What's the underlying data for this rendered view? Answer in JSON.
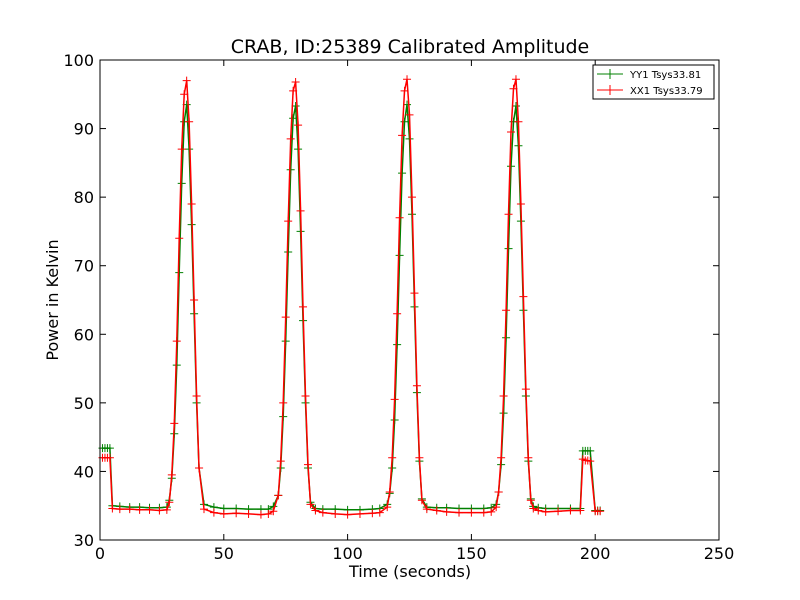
{
  "chart_data": {
    "type": "line",
    "title": "CRAB, ID:25389 Calibrated Amplitude",
    "xlabel": "Time (seconds)",
    "ylabel": "Power in Kelvin",
    "xlim": [
      0,
      250
    ],
    "ylim": [
      30,
      100
    ],
    "xticks": [
      "0",
      "50",
      "100",
      "150",
      "200",
      "250"
    ],
    "yticks": [
      "30",
      "40",
      "50",
      "60",
      "70",
      "80",
      "90",
      "100"
    ],
    "grid": false,
    "legend": "top-right",
    "series": [
      {
        "name": "YY1 Tsys33.81",
        "color": "#008000",
        "marker": "+",
        "x": [
          1,
          2,
          3,
          4,
          5,
          8,
          12,
          16,
          20,
          24,
          27,
          28,
          29,
          30,
          31,
          32,
          33,
          34,
          35,
          36,
          37,
          38,
          39,
          40,
          42,
          46,
          50,
          55,
          60,
          65,
          68,
          70,
          72,
          73,
          74,
          75,
          76,
          77,
          78,
          79,
          80,
          81,
          82,
          83,
          84,
          85,
          87,
          90,
          95,
          100,
          105,
          110,
          113,
          116,
          117,
          118,
          119,
          120,
          121,
          122,
          123,
          124,
          125,
          126,
          127,
          128,
          129,
          130,
          132,
          136,
          140,
          145,
          150,
          155,
          158,
          160,
          161,
          162,
          163,
          164,
          165,
          166,
          167,
          168,
          169,
          170,
          171,
          172,
          173,
          174,
          175,
          177,
          180,
          185,
          190,
          194,
          195,
          196,
          197,
          198,
          200,
          201,
          202
        ],
        "y": [
          43.4,
          43.4,
          43.4,
          43.4,
          35.0,
          34.9,
          34.8,
          34.8,
          34.7,
          34.7,
          34.8,
          35.8,
          39.0,
          45.5,
          55.5,
          69.0,
          82.0,
          91.0,
          93.5,
          87.0,
          76.0,
          63.0,
          50.0,
          40.5,
          35.2,
          34.8,
          34.6,
          34.6,
          34.5,
          34.5,
          34.5,
          34.9,
          36.5,
          40.5,
          48.0,
          59.0,
          72.0,
          84.0,
          91.5,
          93.3,
          87.0,
          75.0,
          62.0,
          50.0,
          40.5,
          35.5,
          34.6,
          34.5,
          34.5,
          34.4,
          34.4,
          34.5,
          34.6,
          35.2,
          36.8,
          40.5,
          47.5,
          58.5,
          71.5,
          83.5,
          91.0,
          93.5,
          88.5,
          77.5,
          64.0,
          51.5,
          41.5,
          36.0,
          34.8,
          34.7,
          34.7,
          34.6,
          34.6,
          34.6,
          34.7,
          35.2,
          37.0,
          41.0,
          48.5,
          59.5,
          72.5,
          84.5,
          91.0,
          93.3,
          87.5,
          76.5,
          63.5,
          51.0,
          41.5,
          36.0,
          34.9,
          34.7,
          34.6,
          34.6,
          34.6,
          34.6,
          43.0,
          43.0,
          43.0,
          43.0,
          34.3,
          34.3,
          34.3
        ]
      },
      {
        "name": "XX1 Tsys33.79",
        "color": "#ff0000",
        "marker": "+",
        "x": [
          1,
          2,
          3,
          4,
          5,
          8,
          12,
          16,
          20,
          24,
          27,
          28,
          29,
          30,
          31,
          32,
          33,
          34,
          35,
          36,
          37,
          38,
          39,
          40,
          42,
          46,
          50,
          55,
          60,
          65,
          68,
          70,
          72,
          73,
          74,
          75,
          76,
          77,
          78,
          79,
          80,
          81,
          82,
          83,
          84,
          85,
          87,
          90,
          95,
          100,
          105,
          110,
          113,
          116,
          117,
          118,
          119,
          120,
          121,
          122,
          123,
          124,
          125,
          126,
          127,
          128,
          129,
          130,
          132,
          136,
          140,
          145,
          150,
          155,
          158,
          160,
          161,
          162,
          163,
          164,
          165,
          166,
          167,
          168,
          169,
          170,
          171,
          172,
          173,
          174,
          175,
          177,
          180,
          185,
          190,
          194,
          195,
          196,
          197,
          198,
          200,
          201,
          202
        ],
        "y": [
          42.0,
          42.0,
          42.0,
          42.0,
          34.6,
          34.5,
          34.5,
          34.4,
          34.4,
          34.3,
          34.4,
          35.5,
          39.5,
          47.0,
          59.0,
          74.0,
          87.0,
          95.0,
          97.0,
          91.0,
          79.0,
          65.0,
          51.0,
          40.5,
          34.5,
          34.0,
          33.8,
          33.9,
          33.8,
          33.7,
          33.8,
          34.2,
          36.5,
          41.5,
          50.0,
          62.5,
          76.5,
          88.5,
          95.5,
          96.8,
          90.5,
          78.0,
          64.0,
          51.0,
          41.0,
          35.2,
          34.3,
          34.0,
          33.8,
          33.7,
          33.8,
          33.9,
          34.0,
          34.8,
          37.0,
          42.0,
          50.5,
          63.0,
          77.0,
          89.0,
          95.5,
          97.2,
          92.0,
          80.0,
          66.0,
          52.5,
          42.0,
          35.8,
          34.5,
          34.3,
          34.1,
          34.0,
          34.0,
          34.0,
          34.1,
          34.8,
          37.0,
          42.0,
          51.0,
          63.5,
          77.5,
          89.5,
          95.8,
          97.2,
          91.0,
          79.0,
          65.5,
          52.0,
          42.0,
          35.8,
          34.6,
          34.3,
          34.1,
          34.2,
          34.3,
          34.3,
          41.8,
          41.6,
          41.6,
          41.5,
          34.2,
          34.2,
          34.2
        ]
      }
    ]
  }
}
